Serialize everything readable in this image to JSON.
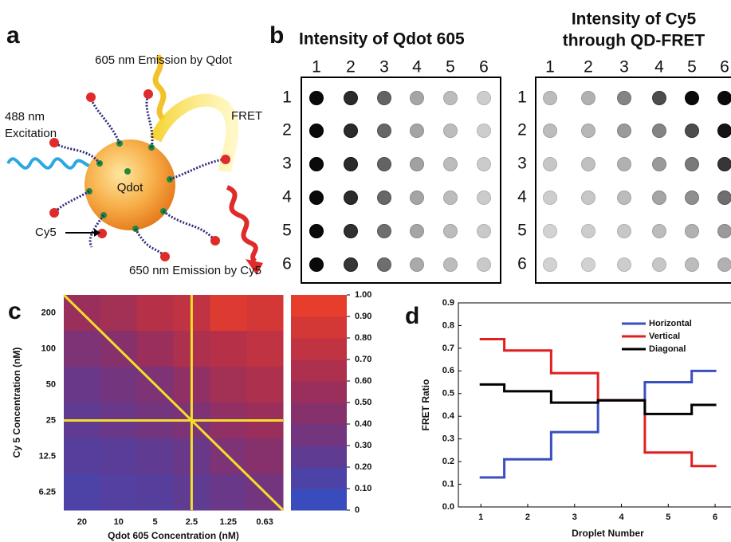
{
  "panel_labels": [
    "a",
    "b",
    "c",
    "d"
  ],
  "diagram": {
    "labels": [
      "605 nm Emission  by Qdot",
      "488 nm",
      "Excitation",
      "FRET",
      "Qdot",
      "Cy5",
      "650 nm Emission  by Cy5"
    ]
  },
  "dot_grids": [
    {
      "title": [
        "Intensity of Qdot 605"
      ],
      "columns": [
        1,
        2,
        3,
        4,
        5,
        6
      ],
      "rows": [
        1,
        2,
        3,
        4,
        5,
        6
      ],
      "intensity": [
        [
          100,
          85,
          60,
          30,
          20,
          12
        ],
        [
          100,
          85,
          58,
          30,
          20,
          12
        ],
        [
          100,
          85,
          60,
          32,
          20,
          13
        ],
        [
          100,
          85,
          58,
          30,
          20,
          13
        ],
        [
          100,
          83,
          55,
          30,
          20,
          14
        ],
        [
          100,
          80,
          55,
          28,
          20,
          14
        ]
      ]
    },
    {
      "title": [
        "Intensity of Cy5",
        "through QD-FRET"
      ],
      "columns": [
        1,
        2,
        3,
        4,
        5,
        6
      ],
      "rows": [
        1,
        2,
        3,
        4,
        5,
        6
      ],
      "intensity": [
        [
          20,
          25,
          45,
          70,
          100,
          100
        ],
        [
          20,
          22,
          35,
          45,
          70,
          95
        ],
        [
          15,
          18,
          25,
          35,
          50,
          80
        ],
        [
          12,
          15,
          20,
          30,
          40,
          55
        ],
        [
          10,
          12,
          15,
          20,
          25,
          35
        ],
        [
          10,
          10,
          12,
          15,
          20,
          25
        ]
      ]
    }
  ],
  "chart_data": [
    {
      "type": "heatmap",
      "x_label": "Qdot 605 Concentration (nM)",
      "y_label": "Cy 5 Concentration (nM)",
      "x_categories": [
        "20",
        "10",
        "5",
        "2.5",
        "1.25",
        "0.63"
      ],
      "y_categories": [
        "200",
        "100",
        "50",
        "25",
        "12.5",
        "6.25"
      ],
      "values": [
        [
          0.55,
          0.6,
          0.7,
          0.75,
          0.9,
          0.85
        ],
        [
          0.4,
          0.45,
          0.55,
          0.65,
          0.7,
          0.75
        ],
        [
          0.3,
          0.35,
          0.4,
          0.5,
          0.6,
          0.65
        ],
        [
          0.25,
          0.3,
          0.35,
          0.4,
          0.5,
          0.55
        ],
        [
          0.2,
          0.22,
          0.25,
          0.3,
          0.4,
          0.45
        ],
        [
          0.15,
          0.18,
          0.2,
          0.25,
          0.3,
          0.35
        ]
      ],
      "low_color": "#3050c8",
      "high_color": "#f02828",
      "clim": [
        0,
        1
      ],
      "cticks": [
        0,
        {
          "value": 0.1,
          "label": "0.10"
        },
        {
          "value": 0.2,
          "label": "0.20"
        },
        {
          "value": 0.3,
          "label": "0.30"
        },
        {
          "value": 0.4,
          "label": "0.40"
        },
        {
          "value": 0.5,
          "label": "0.50"
        },
        {
          "value": 0.6,
          "label": "0.60"
        },
        {
          "value": 0.7,
          "label": "0.70"
        },
        {
          "value": 0.8,
          "label": "0.80"
        },
        {
          "value": 0.9,
          "label": "0.90"
        },
        {
          "value": 1,
          "label": "1.00"
        }
      ]
    },
    {
      "type": "line",
      "drawstyle": "steps-mid",
      "x_label": "Droplet Number",
      "y_label": "FRET Ratio",
      "x": [
        1,
        2,
        3,
        4,
        5,
        6
      ],
      "series": [
        {
          "name": "Horizontal",
          "color": "#3a4fc0",
          "values": [
            0.13,
            0.21,
            0.33,
            0.47,
            0.55,
            0.6
          ]
        },
        {
          "name": "Vertical",
          "color": "#e02020",
          "values": [
            0.74,
            0.69,
            0.59,
            0.47,
            0.24,
            0.18
          ]
        },
        {
          "name": "Diagonal",
          "color": "#000000",
          "values": [
            0.54,
            0.51,
            0.46,
            0.47,
            0.41,
            0.45
          ]
        }
      ],
      "xlim": [
        0.52,
        6.22
      ],
      "ylim": [
        0,
        0.9
      ],
      "xticks": [
        1,
        2,
        3,
        4,
        5,
        6
      ],
      "yticks": [
        {
          "value": 0,
          "label": "0.0"
        },
        0.1,
        0.2,
        0.3,
        0.4,
        0.5,
        0.6,
        0.7,
        0.8,
        0.9
      ],
      "legend": "upper right"
    }
  ]
}
